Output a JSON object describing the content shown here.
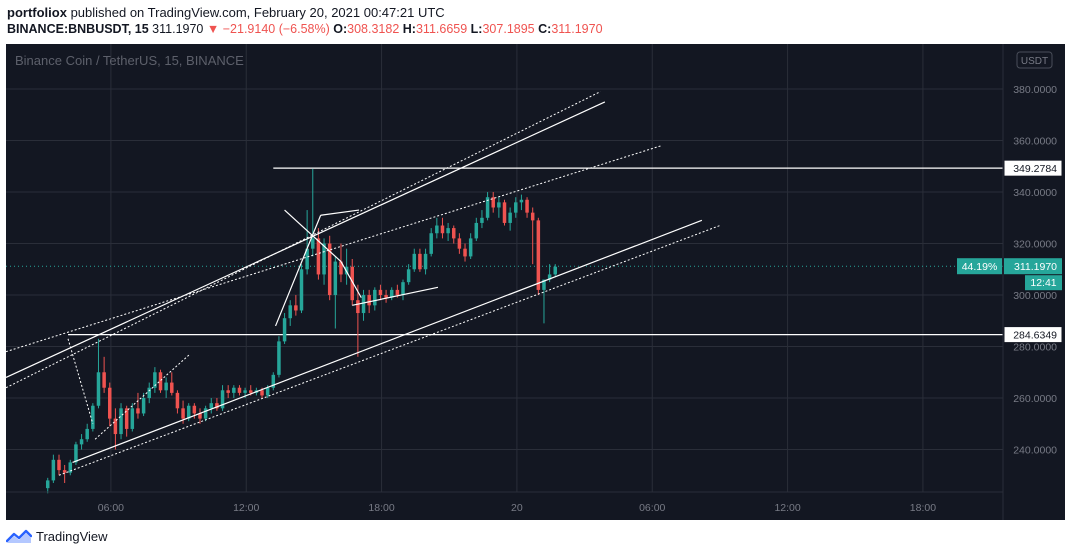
{
  "header": {
    "author": "portfoliox",
    "published_text": "published on TradingView.com, February 20, 2021 00:47:21 UTC",
    "symbol": "BINANCE:BNBUSDT, 15",
    "last": "311.1970",
    "arrow": "▼",
    "change": "−21.9140 (−6.58%)",
    "o_label": "O:",
    "o": "308.3182",
    "h_label": "H:",
    "h": "311.6659",
    "l_label": "L:",
    "l": "307.1895",
    "c_label": "C:",
    "c": "311.1970"
  },
  "chart_title": "Binance Coin / TetherUS, 15, BINANCE",
  "currency_badge": "USDT",
  "footer": {
    "brand": "TradingView",
    "logo_icon": "tradingview-logo-icon"
  },
  "colors": {
    "background": "#131722",
    "grid": "#2a2e39",
    "up": "#26a69a",
    "down": "#ef5350",
    "axis_text": "#787b86",
    "line": "#ffffff",
    "price_tag": "#26a69a"
  },
  "chart_data": {
    "type": "candlestick",
    "title": "Binance Coin / TetherUS, 15, BINANCE",
    "y_ticks": [
      "380.0000",
      "360.0000",
      "340.0000",
      "320.0000",
      "300.0000",
      "280.0000",
      "260.0000",
      "240.0000"
    ],
    "y_tick_values": [
      380,
      360,
      340,
      320,
      300,
      280,
      260,
      240
    ],
    "ylim": [
      223.5,
      397.5
    ],
    "x_ticks": [
      "06:00",
      "12:00",
      "18:00",
      "20",
      "06:00",
      "12:00",
      "18:00"
    ],
    "x_tick_hours": [
      6,
      12,
      18,
      24,
      30,
      36,
      42
    ],
    "xlim": [
      1.35,
      45.55
    ],
    "horizontal_levels": [
      {
        "label": "349.2784",
        "value": 349.2784,
        "start_hour": 13.2
      },
      {
        "label": "284.6349",
        "value": 284.6349,
        "start_hour": 4.1
      }
    ],
    "current_price": {
      "label": "311.1970",
      "value": 311.197,
      "percent": "44.19%",
      "countdown": "12:41"
    },
    "trendlines": [
      {
        "from": [
          1.35,
          268
        ],
        "to": [
          27.9,
          375
        ],
        "style": "solid"
      },
      {
        "from": [
          1.35,
          264
        ],
        "to": [
          27.7,
          379
        ],
        "style": "dotted"
      },
      {
        "from": [
          1.35,
          278
        ],
        "to": [
          30.4,
          358
        ],
        "style": "dotted"
      },
      {
        "from": [
          4.3,
          235
        ],
        "to": [
          32.2,
          329
        ],
        "style": "solid"
      },
      {
        "from": [
          3.7,
          230
        ],
        "to": [
          33.0,
          327
        ],
        "style": "dotted"
      },
      {
        "from": [
          13.7,
          333
        ],
        "to": [
          16.2,
          313
        ],
        "style": "solid"
      },
      {
        "from": [
          16.2,
          313
        ],
        "to": [
          17.1,
          299
        ],
        "style": "solid"
      },
      {
        "from": [
          13.3,
          288
        ],
        "to": [
          15.3,
          331
        ],
        "style": "solid"
      },
      {
        "from": [
          15.3,
          331
        ],
        "to": [
          17.0,
          333
        ],
        "style": "solid"
      },
      {
        "from": [
          16.7,
          296
        ],
        "to": [
          20.5,
          303
        ],
        "style": "solid"
      },
      {
        "from": [
          4.1,
          283
        ],
        "to": [
          5.2,
          250
        ],
        "style": "dotted"
      },
      {
        "from": [
          5.3,
          244
        ],
        "to": [
          9.5,
          277
        ],
        "style": "dotted"
      }
    ],
    "candles": [
      {
        "t": 3.2,
        "o": 225,
        "h": 229,
        "l": 223,
        "c": 228
      },
      {
        "t": 3.45,
        "o": 228,
        "h": 238,
        "l": 227,
        "c": 236
      },
      {
        "t": 3.7,
        "o": 236,
        "h": 238,
        "l": 230,
        "c": 232
      },
      {
        "t": 3.95,
        "o": 232,
        "h": 234,
        "l": 227,
        "c": 231
      },
      {
        "t": 4.2,
        "o": 231,
        "h": 236,
        "l": 230,
        "c": 235
      },
      {
        "t": 4.45,
        "o": 235,
        "h": 243,
        "l": 234,
        "c": 242
      },
      {
        "t": 4.7,
        "o": 242,
        "h": 246,
        "l": 240,
        "c": 244
      },
      {
        "t": 4.95,
        "o": 244,
        "h": 250,
        "l": 243,
        "c": 248
      },
      {
        "t": 5.2,
        "o": 248,
        "h": 258,
        "l": 247,
        "c": 257
      },
      {
        "t": 5.45,
        "o": 257,
        "h": 283,
        "l": 256,
        "c": 270
      },
      {
        "t": 5.7,
        "o": 270,
        "h": 276,
        "l": 262,
        "c": 264
      },
      {
        "t": 5.95,
        "o": 264,
        "h": 266,
        "l": 249,
        "c": 252
      },
      {
        "t": 6.2,
        "o": 252,
        "h": 256,
        "l": 240,
        "c": 246
      },
      {
        "t": 6.45,
        "o": 246,
        "h": 258,
        "l": 244,
        "c": 256
      },
      {
        "t": 6.7,
        "o": 256,
        "h": 257,
        "l": 245,
        "c": 248
      },
      {
        "t": 6.95,
        "o": 248,
        "h": 258,
        "l": 247,
        "c": 256
      },
      {
        "t": 7.2,
        "o": 256,
        "h": 262,
        "l": 252,
        "c": 254
      },
      {
        "t": 7.45,
        "o": 254,
        "h": 262,
        "l": 253,
        "c": 260
      },
      {
        "t": 7.7,
        "o": 260,
        "h": 266,
        "l": 258,
        "c": 264
      },
      {
        "t": 7.95,
        "o": 264,
        "h": 272,
        "l": 262,
        "c": 270
      },
      {
        "t": 8.2,
        "o": 270,
        "h": 271,
        "l": 262,
        "c": 263
      },
      {
        "t": 8.45,
        "o": 263,
        "h": 268,
        "l": 260,
        "c": 266
      },
      {
        "t": 8.7,
        "o": 266,
        "h": 270,
        "l": 261,
        "c": 262
      },
      {
        "t": 8.95,
        "o": 262,
        "h": 263,
        "l": 254,
        "c": 256
      },
      {
        "t": 9.2,
        "o": 256,
        "h": 259,
        "l": 250,
        "c": 252
      },
      {
        "t": 9.45,
        "o": 252,
        "h": 258,
        "l": 251,
        "c": 257
      },
      {
        "t": 9.7,
        "o": 257,
        "h": 258,
        "l": 252,
        "c": 254
      },
      {
        "t": 9.95,
        "o": 254,
        "h": 256,
        "l": 250,
        "c": 252
      },
      {
        "t": 10.2,
        "o": 252,
        "h": 257,
        "l": 251,
        "c": 256
      },
      {
        "t": 10.45,
        "o": 256,
        "h": 260,
        "l": 254,
        "c": 258
      },
      {
        "t": 10.7,
        "o": 258,
        "h": 260,
        "l": 255,
        "c": 256
      },
      {
        "t": 10.95,
        "o": 256,
        "h": 265,
        "l": 255,
        "c": 263
      },
      {
        "t": 11.2,
        "o": 263,
        "h": 265,
        "l": 260,
        "c": 262
      },
      {
        "t": 11.45,
        "o": 262,
        "h": 265,
        "l": 260,
        "c": 264
      },
      {
        "t": 11.7,
        "o": 264,
        "h": 265,
        "l": 261,
        "c": 262
      },
      {
        "t": 11.95,
        "o": 262,
        "h": 264,
        "l": 260,
        "c": 263
      },
      {
        "t": 12.2,
        "o": 263,
        "h": 265,
        "l": 261,
        "c": 262
      },
      {
        "t": 12.45,
        "o": 262,
        "h": 264,
        "l": 261,
        "c": 263
      },
      {
        "t": 12.7,
        "o": 263,
        "h": 264,
        "l": 260,
        "c": 261
      },
      {
        "t": 12.95,
        "o": 261,
        "h": 265,
        "l": 260,
        "c": 264
      },
      {
        "t": 13.2,
        "o": 264,
        "h": 270,
        "l": 263,
        "c": 269
      },
      {
        "t": 13.45,
        "o": 269,
        "h": 284,
        "l": 268,
        "c": 282
      },
      {
        "t": 13.7,
        "o": 282,
        "h": 293,
        "l": 281,
        "c": 291
      },
      {
        "t": 13.95,
        "o": 291,
        "h": 298,
        "l": 288,
        "c": 296
      },
      {
        "t": 14.2,
        "o": 296,
        "h": 300,
        "l": 292,
        "c": 294
      },
      {
        "t": 14.45,
        "o": 294,
        "h": 312,
        "l": 293,
        "c": 310
      },
      {
        "t": 14.7,
        "o": 310,
        "h": 333,
        "l": 308,
        "c": 318
      },
      {
        "t": 14.95,
        "o": 318,
        "h": 349,
        "l": 315,
        "c": 322
      },
      {
        "t": 15.2,
        "o": 322,
        "h": 326,
        "l": 306,
        "c": 308
      },
      {
        "t": 15.45,
        "o": 308,
        "h": 322,
        "l": 304,
        "c": 320
      },
      {
        "t": 15.7,
        "o": 320,
        "h": 323,
        "l": 298,
        "c": 300
      },
      {
        "t": 15.95,
        "o": 300,
        "h": 315,
        "l": 287,
        "c": 313
      },
      {
        "t": 16.2,
        "o": 313,
        "h": 320,
        "l": 305,
        "c": 308
      },
      {
        "t": 16.45,
        "o": 308,
        "h": 318,
        "l": 304,
        "c": 311
      },
      {
        "t": 16.7,
        "o": 311,
        "h": 314,
        "l": 296,
        "c": 298
      },
      {
        "t": 16.95,
        "o": 298,
        "h": 304,
        "l": 276,
        "c": 293
      },
      {
        "t": 17.2,
        "o": 293,
        "h": 302,
        "l": 290,
        "c": 300
      },
      {
        "t": 17.45,
        "o": 300,
        "h": 302,
        "l": 293,
        "c": 296
      },
      {
        "t": 17.7,
        "o": 296,
        "h": 303,
        "l": 294,
        "c": 302
      },
      {
        "t": 17.95,
        "o": 302,
        "h": 304,
        "l": 298,
        "c": 300
      },
      {
        "t": 18.2,
        "o": 300,
        "h": 302,
        "l": 297,
        "c": 299
      },
      {
        "t": 18.45,
        "o": 299,
        "h": 303,
        "l": 298,
        "c": 302
      },
      {
        "t": 18.7,
        "o": 302,
        "h": 304,
        "l": 299,
        "c": 300
      },
      {
        "t": 18.95,
        "o": 300,
        "h": 306,
        "l": 298,
        "c": 305
      },
      {
        "t": 19.2,
        "o": 305,
        "h": 312,
        "l": 304,
        "c": 310
      },
      {
        "t": 19.45,
        "o": 310,
        "h": 318,
        "l": 309,
        "c": 316
      },
      {
        "t": 19.7,
        "o": 316,
        "h": 318,
        "l": 309,
        "c": 310
      },
      {
        "t": 19.95,
        "o": 310,
        "h": 318,
        "l": 308,
        "c": 316
      },
      {
        "t": 20.2,
        "o": 316,
        "h": 326,
        "l": 315,
        "c": 324
      },
      {
        "t": 20.45,
        "o": 324,
        "h": 330,
        "l": 322,
        "c": 327
      },
      {
        "t": 20.7,
        "o": 327,
        "h": 330,
        "l": 322,
        "c": 324
      },
      {
        "t": 20.95,
        "o": 324,
        "h": 328,
        "l": 321,
        "c": 326
      },
      {
        "t": 21.2,
        "o": 326,
        "h": 327,
        "l": 320,
        "c": 322
      },
      {
        "t": 21.45,
        "o": 322,
        "h": 324,
        "l": 316,
        "c": 318
      },
      {
        "t": 21.7,
        "o": 318,
        "h": 320,
        "l": 313,
        "c": 315
      },
      {
        "t": 21.95,
        "o": 315,
        "h": 324,
        "l": 314,
        "c": 322
      },
      {
        "t": 22.2,
        "o": 322,
        "h": 330,
        "l": 321,
        "c": 328
      },
      {
        "t": 22.45,
        "o": 328,
        "h": 333,
        "l": 326,
        "c": 330
      },
      {
        "t": 22.7,
        "o": 330,
        "h": 340,
        "l": 329,
        "c": 338
      },
      {
        "t": 22.95,
        "o": 338,
        "h": 340,
        "l": 332,
        "c": 334
      },
      {
        "t": 23.2,
        "o": 334,
        "h": 338,
        "l": 330,
        "c": 336
      },
      {
        "t": 23.45,
        "o": 336,
        "h": 337,
        "l": 327,
        "c": 328
      },
      {
        "t": 23.7,
        "o": 328,
        "h": 334,
        "l": 325,
        "c": 332
      },
      {
        "t": 23.95,
        "o": 332,
        "h": 338,
        "l": 330,
        "c": 336
      },
      {
        "t": 24.2,
        "o": 336,
        "h": 339,
        "l": 333,
        "c": 337
      },
      {
        "t": 24.45,
        "o": 337,
        "h": 338,
        "l": 330,
        "c": 332
      },
      {
        "t": 24.7,
        "o": 332,
        "h": 334,
        "l": 312,
        "c": 329
      },
      {
        "t": 24.95,
        "o": 329,
        "h": 330,
        "l": 300,
        "c": 302
      },
      {
        "t": 25.2,
        "o": 302,
        "h": 306,
        "l": 289,
        "c": 306
      },
      {
        "t": 25.45,
        "o": 306,
        "h": 312,
        "l": 305,
        "c": 308
      },
      {
        "t": 25.7,
        "o": 308,
        "h": 312,
        "l": 307,
        "c": 311
      }
    ]
  }
}
